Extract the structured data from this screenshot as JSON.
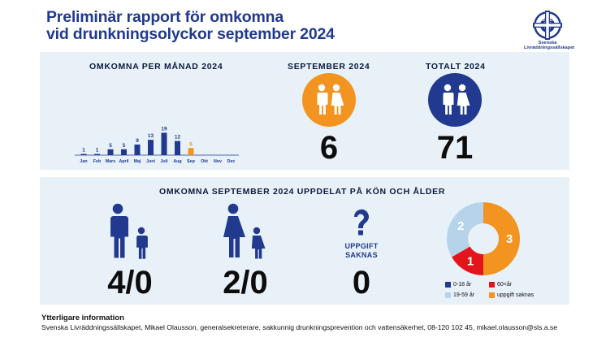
{
  "title": {
    "line1": "Preliminär rapport för omkomna",
    "line2": "vid drunkningsolyckor september 2024"
  },
  "logo": {
    "icon": "lifebuoy-icon",
    "line1": "Svenska",
    "line2": "Livräddningssällskapet",
    "letters": [
      "S",
      "L",
      "S"
    ]
  },
  "monthly": {
    "heading": "OMKOMNA PER MÅNAD 2024"
  },
  "september": {
    "heading": "SEPTEMBER 2024",
    "value": "6",
    "icon": "man-woman-icon",
    "color": "#f2941f"
  },
  "total": {
    "heading": "TOTALT 2024",
    "value": "71",
    "icon": "man-woman-icon",
    "color": "#213a8f"
  },
  "breakdown": {
    "heading": "OMKOMNA SEPTEMBER 2024 UPPDELAT PÅ KÖN OCH ÅLDER",
    "men": {
      "icon": "man-child-icon",
      "value": "4/0"
    },
    "women": {
      "icon": "woman-child-icon",
      "value": "2/0"
    },
    "unknown": {
      "icon": "question-mark-icon",
      "label1": "UPPGIFT",
      "label2": "SAKNAS",
      "value": "0"
    }
  },
  "legend": [
    {
      "label": "0-18 år",
      "color": "#213a8f"
    },
    {
      "label": "60<år",
      "color": "#e3141b"
    },
    {
      "label": "19-59 år",
      "color": "#b7d3ea"
    },
    {
      "label": "uppgift saknas",
      "color": "#f2941f"
    }
  ],
  "footer": {
    "heading": "Ytterligare information",
    "text": "Svenska Livräddningssällskapet, Mikael Olausson, generalsekreterare, sakkunnig drunkningsprevention och vattensäkerhet, 08-120 102 45, mikael.olausson@sls.a.se"
  },
  "chart_data": [
    {
      "type": "bar",
      "title": "OMKOMNA PER MÅNAD 2024",
      "categories": [
        "Jan",
        "Feb",
        "Mars",
        "April",
        "Maj",
        "Juni",
        "Juli",
        "Aug",
        "Sep",
        "Okt",
        "Nov",
        "Dec"
      ],
      "values": [
        1,
        1,
        5,
        5,
        9,
        13,
        19,
        12,
        6,
        null,
        null,
        null
      ],
      "value_labels": [
        "1",
        "1",
        "5",
        "5",
        "9",
        "13",
        "19",
        "12",
        "6",
        "",
        "",
        ""
      ],
      "highlight_category": "Sep",
      "colors": {
        "default": "#213a8f",
        "highlight": "#f2941f"
      },
      "ylim": [
        0,
        20
      ],
      "grid": false
    },
    {
      "type": "pie",
      "title": "",
      "donut": true,
      "slices": [
        {
          "label": "uppgift saknas",
          "value": 3,
          "color": "#f2941f"
        },
        {
          "label": "60<år",
          "value": 1,
          "color": "#e3141b"
        },
        {
          "label": "19-59 år",
          "value": 2,
          "color": "#b7d3ea"
        }
      ]
    }
  ]
}
